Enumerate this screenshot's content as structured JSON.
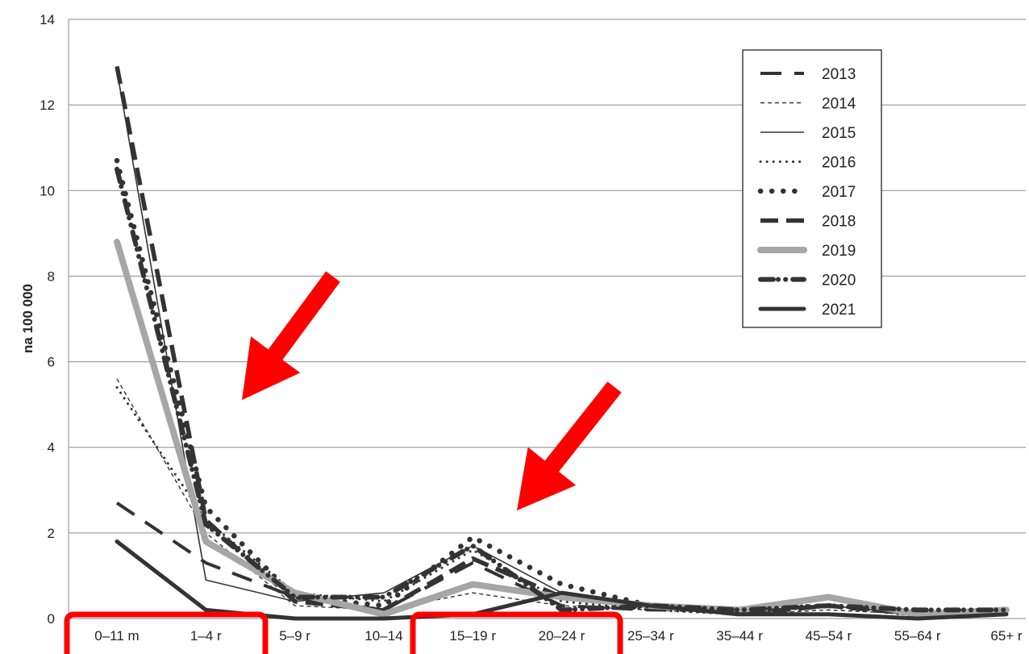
{
  "chart_data": {
    "type": "line",
    "title": "",
    "xlabel": "",
    "ylabel": "na 100 000",
    "ylim": [
      0,
      14
    ],
    "yticks": [
      0,
      2,
      4,
      6,
      8,
      10,
      12,
      14
    ],
    "grid": "horizontal",
    "legend_position": "top-right",
    "categories": [
      "0–11 m",
      "1–4 r",
      "5–9 r",
      "10–14",
      "15–19 r",
      "20–24 r",
      "25–34 r",
      "35–44 r",
      "45–54 r",
      "55–64 r",
      "65+ r"
    ],
    "series": [
      {
        "name": "2013",
        "style": "long-dash",
        "color": "#333333",
        "values": [
          2.7,
          1.3,
          0.5,
          0.2,
          1.3,
          0.3,
          0.2,
          0.2,
          0.3,
          0.1,
          0.2
        ]
      },
      {
        "name": "2014",
        "style": "short-dash",
        "color": "#333333",
        "values": [
          5.6,
          2.0,
          0.3,
          0.2,
          0.6,
          0.3,
          0.2,
          0.1,
          0.2,
          0.1,
          0.2
        ]
      },
      {
        "name": "2015",
        "style": "thin-solid",
        "color": "#333333",
        "values": [
          12.8,
          0.9,
          0.4,
          0.6,
          1.7,
          0.6,
          0.3,
          0.1,
          0.3,
          0.1,
          0.2
        ]
      },
      {
        "name": "2016",
        "style": "small-dots",
        "color": "#333333",
        "values": [
          5.4,
          2.3,
          0.6,
          0.4,
          1.6,
          0.4,
          0.2,
          0.1,
          0.3,
          0.1,
          0.2
        ]
      },
      {
        "name": "2017",
        "style": "large-dots",
        "color": "#333333",
        "values": [
          10.7,
          2.6,
          0.5,
          0.3,
          1.9,
          0.8,
          0.3,
          0.2,
          0.3,
          0.1,
          0.2
        ]
      },
      {
        "name": "2018",
        "style": "thick-dash",
        "color": "#333333",
        "values": [
          12.9,
          2.3,
          0.4,
          0.2,
          1.4,
          0.5,
          0.3,
          0.1,
          0.3,
          0.1,
          0.2
        ]
      },
      {
        "name": "2019",
        "style": "gray-thick",
        "color": "#a6a6a6",
        "values": [
          8.8,
          1.8,
          0.6,
          0.1,
          0.8,
          0.5,
          0.3,
          0.2,
          0.5,
          0.1,
          0.2
        ]
      },
      {
        "name": "2020",
        "style": "dash-dot-dot",
        "color": "#333333",
        "values": [
          10.5,
          2.2,
          0.5,
          0.5,
          1.7,
          0.2,
          0.3,
          0.2,
          0.3,
          0.2,
          0.2
        ]
      },
      {
        "name": "2021",
        "style": "thick-solid",
        "color": "#333333",
        "values": [
          1.8,
          0.2,
          0.0,
          0.0,
          0.1,
          0.6,
          0.3,
          0.1,
          0.1,
          0.0,
          0.1
        ]
      }
    ],
    "annotations": {
      "arrow_color": "#ff0000",
      "highlight_box_color": "#ff0000",
      "highlighted_groups": [
        [
          "0–11 m",
          "1–4 r"
        ],
        [
          "15–19 r",
          "20–24 r"
        ]
      ]
    }
  }
}
